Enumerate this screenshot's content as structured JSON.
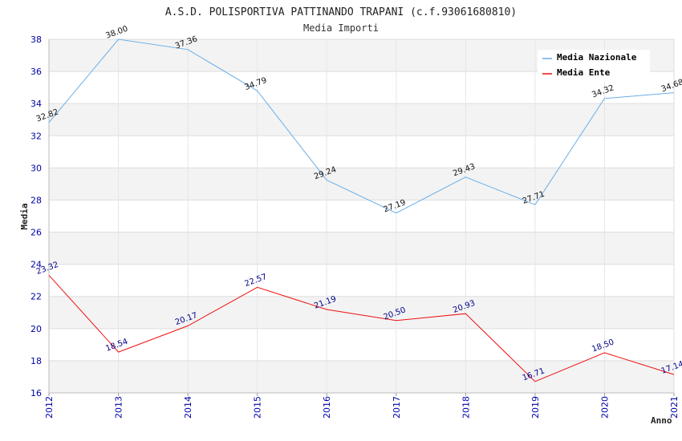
{
  "chart_data": {
    "type": "line",
    "title": "A.S.D. POLISPORTIVA PATTINANDO TRAPANI (c.f.93061680810)",
    "subtitle": "Media Importi",
    "xlabel": "Anno",
    "ylabel": "Media",
    "x": [
      "2012",
      "2013",
      "2014",
      "2015",
      "2016",
      "2017",
      "2018",
      "2019",
      "2020",
      "2021"
    ],
    "ylim": [
      16,
      38
    ],
    "yticks": [
      "16",
      "18",
      "20",
      "22",
      "24",
      "26",
      "28",
      "30",
      "32",
      "34",
      "36",
      "38"
    ],
    "grid": true,
    "legend_position": "top-right",
    "series": [
      {
        "name": "Media Nazionale",
        "color": "#6aaee8",
        "values": [
          32.82,
          38.0,
          37.36,
          34.79,
          29.24,
          27.19,
          29.43,
          27.71,
          34.32,
          34.68
        ],
        "labels": [
          "32.82",
          "38.00",
          "37.36",
          "34.79",
          "29.24",
          "27.19",
          "29.43",
          "27.71",
          "34.32",
          "34.68"
        ]
      },
      {
        "name": "Media Ente",
        "color": "#ee1111",
        "values": [
          23.32,
          18.54,
          20.17,
          22.57,
          21.19,
          20.5,
          20.93,
          16.71,
          18.5,
          17.14
        ],
        "labels": [
          "23.32",
          "18.54",
          "20.17",
          "22.57",
          "21.19",
          "20.50",
          "20.93",
          "16.71",
          "18.50",
          "17.14"
        ]
      }
    ]
  }
}
